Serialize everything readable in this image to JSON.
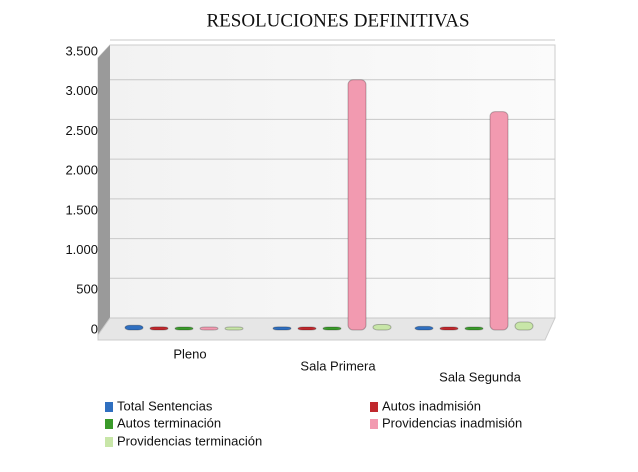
{
  "chart_data": {
    "type": "bar",
    "title": "RESOLUCIONES DEFINITIVAS",
    "categories": [
      "Pleno",
      "Sala Primera",
      "Sala Segunda"
    ],
    "series": [
      {
        "name": "Total Sentencias",
        "color": "#2f6fc0",
        "values": [
          60,
          40,
          45
        ]
      },
      {
        "name": "Autos inadmisión",
        "color": "#c0282d",
        "values": [
          40,
          30,
          30
        ]
      },
      {
        "name": "Autos terminación",
        "color": "#3a9a2a",
        "values": [
          30,
          20,
          20
        ]
      },
      {
        "name": "Providencias inadmisión",
        "color": "#f29ab0",
        "values": [
          25,
          3150,
          2750
        ]
      },
      {
        "name": "Providencias terminación",
        "color": "#c8e6a8",
        "values": [
          20,
          70,
          100
        ]
      }
    ],
    "ylim": [
      0,
      3500
    ],
    "yticks": [
      0,
      500,
      {
        "value": 1000,
        "label": "1.000"
      },
      {
        "value": 1500,
        "label": "1.500"
      },
      {
        "value": 2000,
        "label": "2.000"
      },
      {
        "value": 2500,
        "label": "2.500"
      },
      {
        "value": 3000,
        "label": "3.000"
      },
      {
        "value": 3500,
        "label": "3.500"
      }
    ],
    "grid": true
  }
}
